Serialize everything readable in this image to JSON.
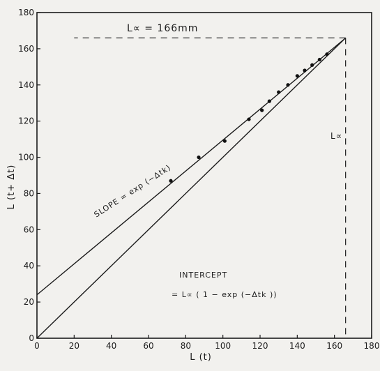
{
  "chart_data": {
    "type": "scatter",
    "xlabel": "L (t)",
    "ylabel": "L (t+ Δt)",
    "xlim": [
      0,
      180
    ],
    "ylim": [
      0,
      180
    ],
    "x_ticks": [
      "0",
      "20",
      "40",
      "60",
      "80",
      "100",
      "120",
      "140",
      "160",
      "180"
    ],
    "y_ticks": [
      "0",
      "20",
      "40",
      "60",
      "80",
      "100",
      "120",
      "140",
      "160",
      "180"
    ],
    "series": [
      {
        "values": [
          {
            "x": 72,
            "y": 87
          },
          {
            "x": 87,
            "y": 100
          },
          {
            "x": 101,
            "y": 109
          },
          {
            "x": 114,
            "y": 121
          },
          {
            "x": 121,
            "y": 126
          },
          {
            "x": 125,
            "y": 131
          },
          {
            "x": 130,
            "y": 136
          },
          {
            "x": 135,
            "y": 140
          },
          {
            "x": 140,
            "y": 145
          },
          {
            "x": 144,
            "y": 148
          },
          {
            "x": 148,
            "y": 151
          },
          {
            "x": 152,
            "y": 154
          },
          {
            "x": 156,
            "y": 157
          }
        ]
      }
    ],
    "fit_line": {
      "intercept": 24,
      "slope": 0.855
    },
    "identity_line": {
      "from": [
        0,
        0
      ],
      "to": [
        166,
        166
      ]
    },
    "l_infinity_value": 166,
    "annotations": {
      "linf_top": "L∝ = 166mm",
      "linf_side": "L∝",
      "slope": "SLOPE = exp (−Δtk)",
      "intercept_title": "INTERCEPT",
      "intercept_formula": "= L∝ ( 1 − exp (−Δtk ))"
    },
    "grid": false,
    "legend": "none"
  }
}
